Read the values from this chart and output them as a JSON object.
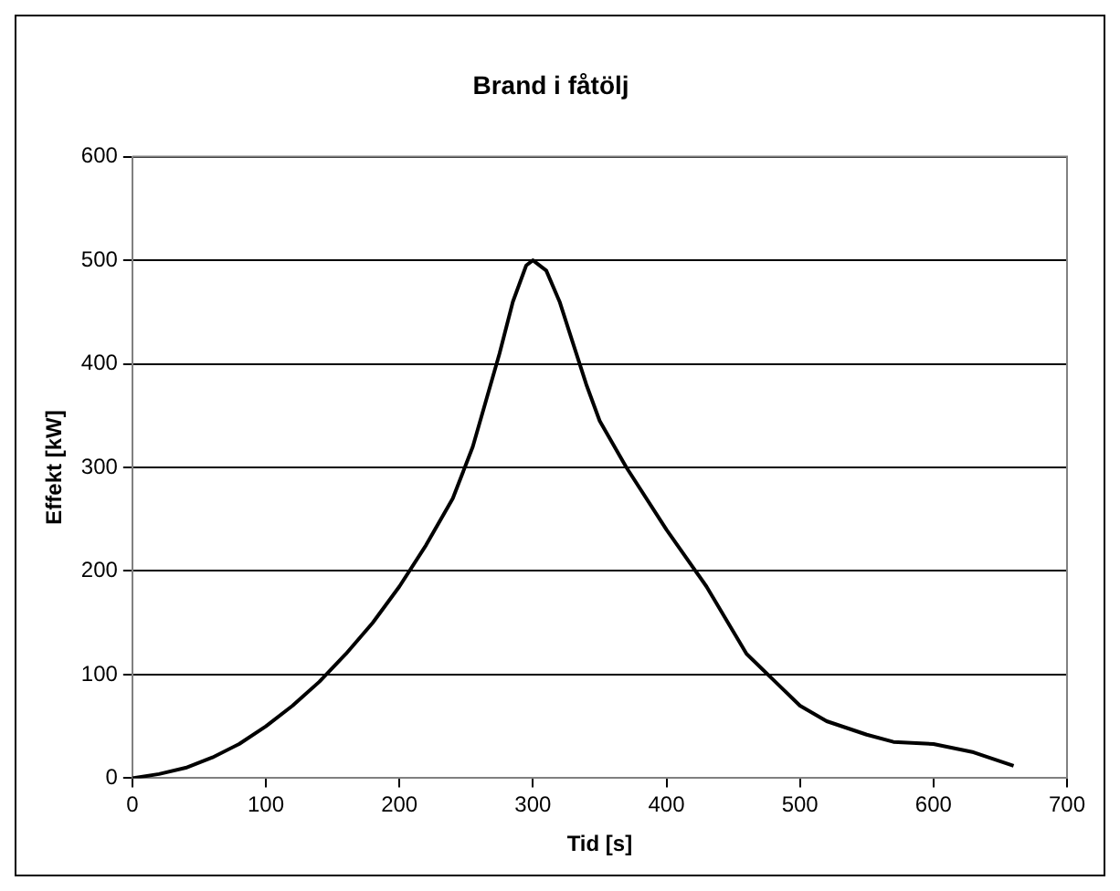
{
  "chart_data": {
    "type": "line",
    "title": "Brand i fåtölj",
    "xlabel": "Tid [s]",
    "ylabel": "Effekt [kW]",
    "xlim": [
      0,
      700
    ],
    "xticks": [
      0,
      100,
      200,
      300,
      400,
      500,
      600,
      700
    ],
    "ylim": [
      0,
      600
    ],
    "yticks": [
      0,
      100,
      200,
      300,
      400,
      500,
      600
    ],
    "grid": "y",
    "legend": false,
    "marker": "none",
    "line_style": "solid",
    "series": [
      {
        "color": "#000000",
        "x": [
          0,
          20,
          40,
          60,
          80,
          100,
          120,
          140,
          160,
          180,
          200,
          220,
          240,
          255,
          265,
          275,
          285,
          295,
          300,
          310,
          320,
          330,
          340,
          350,
          370,
          400,
          430,
          460,
          480,
          500,
          520,
          550,
          570,
          600,
          630,
          660
        ],
        "values": [
          0,
          4,
          10,
          20,
          33,
          50,
          70,
          93,
          120,
          150,
          185,
          225,
          270,
          320,
          365,
          410,
          460,
          495,
          500,
          490,
          460,
          420,
          380,
          345,
          300,
          240,
          185,
          120,
          95,
          70,
          55,
          42,
          35,
          33,
          25,
          12
        ]
      }
    ]
  }
}
